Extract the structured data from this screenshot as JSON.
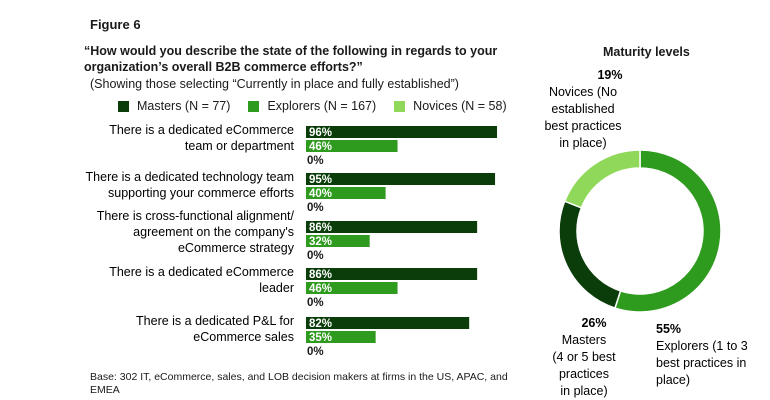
{
  "figure_label": "Figure 6",
  "question": "“How would you describe the state of the following in regards to your organization’s overall B2B commerce efforts?”",
  "subtitle": "(Showing those selecting “Currently in place and fully established”)",
  "base_note": "Base: 302 IT, eCommerce, sales, and LOB decision makers at firms in the US, APAC, and EMEA",
  "colors": {
    "masters": "#0b3d0b",
    "explorers": "#2e9a1e",
    "novices": "#8fd85a"
  },
  "chart_data": [
    {
      "type": "bar",
      "orientation": "horizontal",
      "legend_position": "top",
      "categories": [
        "There is a dedicated eCommerce team or department",
        "There is a dedicated technology team supporting your commerce efforts",
        "There is cross-functional alignment/ agreement on the company's eCommerce strategy",
        "There is a dedicated eCommerce leader",
        "There is a dedicated P&L for eCommerce sales"
      ],
      "category_lines": [
        [
          "There is a dedicated eCommerce",
          "team or department"
        ],
        [
          "There is a dedicated technology team",
          "supporting your commerce efforts"
        ],
        [
          "There is cross-functional alignment/",
          "agreement on the company's",
          "eCommerce strategy"
        ],
        [
          "There is a dedicated eCommerce",
          "leader"
        ],
        [
          "There is a dedicated P&L for",
          "eCommerce sales"
        ]
      ],
      "series": [
        {
          "name": "Masters (N = 77)",
          "key": "masters",
          "values": [
            96,
            95,
            86,
            86,
            82
          ]
        },
        {
          "name": "Explorers (N = 167)",
          "key": "explorers",
          "values": [
            46,
            40,
            32,
            46,
            35
          ]
        },
        {
          "name": "Novices (N = 58)",
          "key": "novices",
          "values": [
            0,
            0,
            0,
            0,
            0
          ]
        }
      ],
      "unit": "%"
    },
    {
      "type": "pie",
      "subtype": "donut",
      "title": "Maturity levels",
      "slices": [
        {
          "key": "explorers",
          "value": 55,
          "pct_label": "55%",
          "label_lines": [
            "Explorers (1 to 3",
            "best practices in",
            "place)"
          ]
        },
        {
          "key": "masters",
          "value": 26,
          "pct_label": "26%",
          "label_lines": [
            "Masters",
            "(4 or 5 best",
            "practices",
            "in place)"
          ]
        },
        {
          "key": "novices",
          "value": 19,
          "pct_label": "19%",
          "label_lines": [
            "Novices (No",
            "established",
            "best practices",
            "in place)"
          ]
        }
      ]
    }
  ]
}
